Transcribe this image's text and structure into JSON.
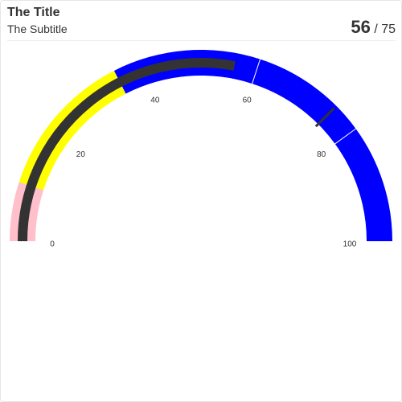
{
  "header": {
    "title": "The Title",
    "subtitle": "The Subtitle",
    "value": "56",
    "target_text": "/ 75"
  },
  "chart_data": {
    "type": "gauge",
    "title": "The Title",
    "subtitle": "The Subtitle",
    "min": 0,
    "max": 100,
    "value": 56,
    "target": 75,
    "ticks": [
      0,
      20,
      40,
      60,
      80,
      100
    ],
    "bands": [
      {
        "from": 0,
        "to": 10,
        "color": "#ffc0cb"
      },
      {
        "from": 10,
        "to": 35,
        "color": "#ffff00"
      },
      {
        "from": 35,
        "to": 60,
        "color": "#0000ff"
      },
      {
        "from": 60,
        "to": 80,
        "color": "#0000ff"
      },
      {
        "from": 80,
        "to": 100,
        "color": "#0000ff"
      }
    ],
    "value_color": "#333333",
    "target_color": "#333333"
  }
}
